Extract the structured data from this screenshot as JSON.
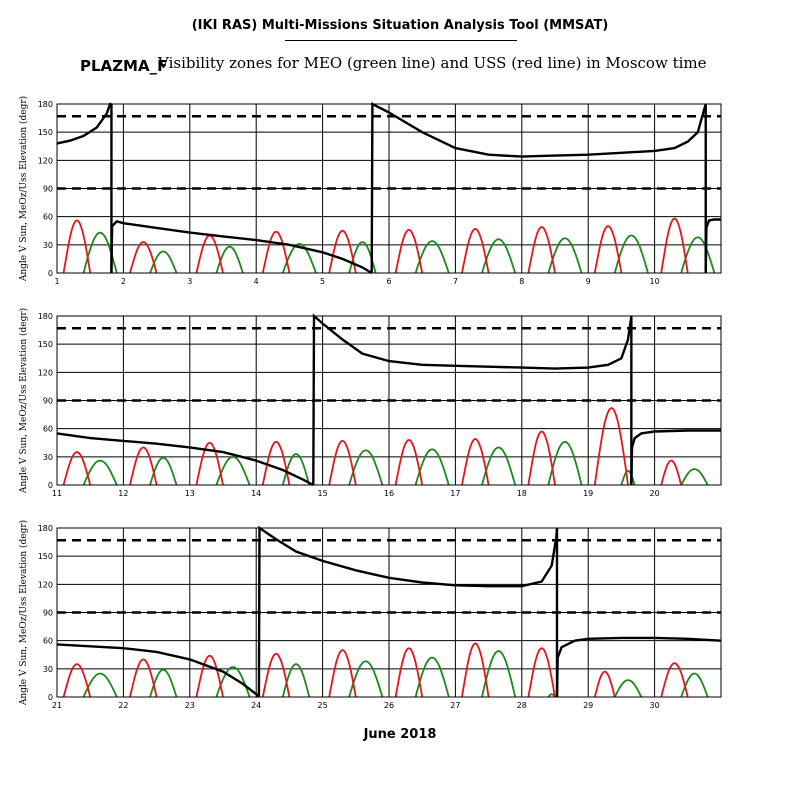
{
  "header": {
    "title": "(IKI RAS) Multi-Missions Situation Analysis Tool (MMSAT)",
    "station": "PLAZMA_F",
    "subtitle": "Visibility zones for MEO (green line) and USS (red line) in Moscow time"
  },
  "footer": {
    "month_label": "June 2018"
  },
  "colors": {
    "angle": "#000000",
    "meo": "#1a8a1a",
    "uss": "#e8141a",
    "grid": "#000000"
  },
  "chart_data": [
    {
      "type": "line",
      "ylabel": "Angle V Sun, MeOz/Uss Elevation (degr)",
      "xlim": [
        1,
        11
      ],
      "ylim": [
        0,
        180
      ],
      "x_ticks": [
        1,
        2,
        3,
        4,
        5,
        6,
        7,
        8,
        9,
        10
      ],
      "y_ticks": [
        0,
        30,
        60,
        90,
        120,
        150,
        180
      ],
      "reference_lines": [
        90,
        167
      ],
      "uss_passes": [
        [
          1.1,
          1.5,
          56
        ],
        [
          2.1,
          2.5,
          33
        ],
        [
          3.1,
          3.5,
          40
        ],
        [
          4.1,
          4.5,
          44
        ],
        [
          5.1,
          5.5,
          45
        ],
        [
          6.1,
          6.5,
          46
        ],
        [
          7.1,
          7.5,
          47
        ],
        [
          8.1,
          8.5,
          49
        ],
        [
          9.1,
          9.5,
          50
        ],
        [
          10.1,
          10.5,
          58
        ]
      ],
      "meo_passes": [
        [
          1.4,
          1.9,
          43
        ],
        [
          2.4,
          2.8,
          23
        ],
        [
          3.4,
          3.8,
          28
        ],
        [
          4.4,
          4.9,
          31
        ],
        [
          5.4,
          5.8,
          33
        ],
        [
          6.4,
          6.9,
          34
        ],
        [
          7.4,
          7.9,
          36
        ],
        [
          8.4,
          8.9,
          37
        ],
        [
          9.4,
          9.9,
          40
        ],
        [
          10.4,
          10.9,
          38
        ]
      ],
      "angle_series": [
        {
          "name": "",
          "x": [
            1.0,
            1.2,
            1.4,
            1.6,
            1.75,
            1.8,
            1.82
          ],
          "y": [
            138,
            141,
            146,
            155,
            170,
            180,
            180
          ]
        },
        {
          "name": "",
          "x": [
            1.82,
            1.83,
            1.9,
            2.0,
            2.5,
            3.0,
            3.5,
            4.0,
            4.5,
            5.0,
            5.3,
            5.6,
            5.74
          ],
          "y": [
            0,
            50,
            55,
            53,
            48,
            43,
            39,
            35,
            30,
            22,
            15,
            6,
            0
          ]
        },
        {
          "name": "",
          "x": [
            5.74,
            5.75,
            6.0,
            6.5,
            7.0,
            7.5,
            8.0,
            8.5,
            9.0,
            9.5,
            10.0,
            10.3,
            10.5,
            10.65,
            10.75,
            10.77
          ],
          "y": [
            0,
            180,
            171,
            150,
            133,
            126,
            124,
            125,
            126,
            128,
            130,
            133,
            140,
            150,
            175,
            180
          ]
        },
        {
          "name": "",
          "x": [
            10.77,
            10.78,
            10.82,
            10.9,
            11.0
          ],
          "y": [
            0,
            48,
            56,
            57,
            57
          ]
        }
      ]
    },
    {
      "type": "line",
      "ylabel": "Angle V Sun, MeOz/Uss Elevation (degr)",
      "xlim": [
        11,
        21
      ],
      "ylim": [
        0,
        180
      ],
      "x_ticks": [
        11,
        12,
        13,
        14,
        15,
        16,
        17,
        18,
        19,
        20
      ],
      "y_ticks": [
        0,
        30,
        60,
        90,
        120,
        150,
        180
      ],
      "reference_lines": [
        90,
        167
      ],
      "uss_passes": [
        [
          11.1,
          11.5,
          35
        ],
        [
          12.1,
          12.5,
          40
        ],
        [
          13.1,
          13.5,
          45
        ],
        [
          14.1,
          14.5,
          46
        ],
        [
          15.1,
          15.5,
          47
        ],
        [
          16.1,
          16.5,
          48
        ],
        [
          17.1,
          17.5,
          49
        ],
        [
          18.1,
          18.5,
          57
        ],
        [
          19.1,
          19.6,
          82
        ],
        [
          20.1,
          20.4,
          26
        ]
      ],
      "meo_passes": [
        [
          11.4,
          11.9,
          26
        ],
        [
          12.4,
          12.8,
          29
        ],
        [
          13.4,
          13.9,
          30
        ],
        [
          14.4,
          14.8,
          33
        ],
        [
          15.4,
          15.9,
          37
        ],
        [
          16.4,
          16.9,
          38
        ],
        [
          17.4,
          17.9,
          40
        ],
        [
          18.4,
          18.9,
          46
        ],
        [
          19.5,
          19.7,
          15
        ],
        [
          20.4,
          20.8,
          17
        ]
      ],
      "angle_series": [
        {
          "name": "",
          "x": [
            11.0,
            11.5,
            12.0,
            12.5,
            13.0,
            13.5,
            14.0,
            14.4,
            14.7,
            14.86
          ],
          "y": [
            55,
            50,
            47,
            44,
            40,
            35,
            26,
            16,
            6,
            0
          ]
        },
        {
          "name": "",
          "x": [
            14.86,
            14.87,
            15.0,
            15.3,
            15.6,
            16.0,
            16.5,
            17.0,
            17.5,
            18.0,
            18.5,
            19.0,
            19.3,
            19.5,
            19.6,
            19.65
          ],
          "y": [
            0,
            180,
            172,
            155,
            140,
            132,
            128,
            127,
            126,
            125,
            124,
            125,
            128,
            135,
            155,
            180
          ]
        },
        {
          "name": "",
          "x": [
            19.65,
            19.66,
            19.7,
            19.8,
            20.0,
            20.5,
            21.0
          ],
          "y": [
            0,
            40,
            50,
            55,
            57,
            58,
            58
          ]
        }
      ]
    },
    {
      "type": "line",
      "ylabel": "Angle V Sun, MeOz/Uss Elevation (degr)",
      "xlim": [
        21,
        31
      ],
      "ylim": [
        0,
        180
      ],
      "x_ticks": [
        21,
        22,
        23,
        24,
        25,
        26,
        27,
        28,
        29,
        30
      ],
      "y_ticks": [
        0,
        30,
        60,
        90,
        120,
        150,
        180
      ],
      "reference_lines": [
        90,
        167
      ],
      "uss_passes": [
        [
          21.1,
          21.5,
          35
        ],
        [
          22.1,
          22.5,
          40
        ],
        [
          23.1,
          23.5,
          44
        ],
        [
          24.1,
          24.5,
          46
        ],
        [
          25.1,
          25.5,
          50
        ],
        [
          26.1,
          26.5,
          52
        ],
        [
          27.1,
          27.5,
          57
        ],
        [
          28.1,
          28.5,
          52
        ],
        [
          29.1,
          29.4,
          27
        ],
        [
          30.1,
          30.5,
          36
        ]
      ],
      "meo_passes": [
        [
          21.4,
          21.9,
          25
        ],
        [
          22.4,
          22.8,
          29
        ],
        [
          23.4,
          23.9,
          32
        ],
        [
          24.4,
          24.8,
          35
        ],
        [
          25.4,
          25.9,
          38
        ],
        [
          26.4,
          26.9,
          42
        ],
        [
          27.4,
          27.9,
          49
        ],
        [
          28.4,
          28.5,
          3
        ],
        [
          29.4,
          29.8,
          18
        ],
        [
          30.4,
          30.8,
          25
        ]
      ],
      "angle_series": [
        {
          "name": "",
          "x": [
            21.0,
            21.5,
            22.0,
            22.5,
            23.0,
            23.5,
            23.8,
            24.0,
            24.04
          ],
          "y": [
            56,
            54,
            52,
            48,
            40,
            27,
            14,
            3,
            0
          ]
        },
        {
          "name": "",
          "x": [
            24.04,
            24.05,
            24.3,
            24.6,
            25.0,
            25.5,
            26.0,
            26.5,
            27.0,
            27.5,
            28.0,
            28.3,
            28.45,
            28.52,
            28.53
          ],
          "y": [
            0,
            180,
            168,
            155,
            145,
            135,
            127,
            122,
            119,
            118,
            118,
            123,
            140,
            170,
            180
          ]
        },
        {
          "name": "",
          "x": [
            28.53,
            28.54,
            28.6,
            28.8,
            29.0,
            29.5,
            30.0,
            30.5,
            31.0
          ],
          "y": [
            0,
            42,
            53,
            60,
            62,
            63,
            63,
            62,
            60
          ]
        }
      ]
    }
  ]
}
